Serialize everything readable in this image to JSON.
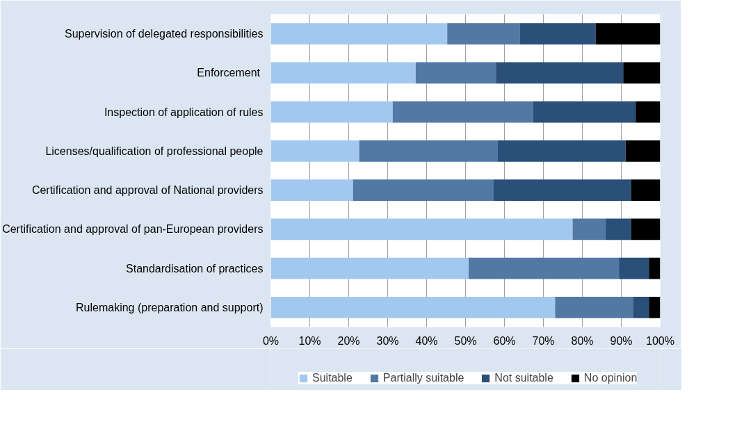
{
  "chart_data": {
    "type": "bar",
    "orientation": "horizontal",
    "stacked": true,
    "categories": [
      "Supervision of delegated responsibilities",
      "Enforcement ",
      "Inspection of application of rules",
      "Licenses/qualification of professional people",
      "Certification and approval of National providers",
      "Certification and approval of pan-European providers",
      "Standardisation of practices",
      "Rulemaking (preparation and support)"
    ],
    "series": [
      {
        "name": "Suitable",
        "color": "#a3c8f0",
        "values": [
          45.3,
          37.2,
          31.3,
          22.7,
          21.1,
          77.5,
          50.8,
          73.0
        ]
      },
      {
        "name": "Partially suitable",
        "color": "#5279a3",
        "values": [
          18.7,
          20.6,
          36.1,
          35.6,
          36.0,
          8.5,
          38.6,
          20.0
        ]
      },
      {
        "name": "Not suitable",
        "color": "#2a4f78",
        "values": [
          19.4,
          32.7,
          26.3,
          32.8,
          35.4,
          6.5,
          7.7,
          4.1
        ]
      },
      {
        "name": "No opinion",
        "color": "#000000",
        "values": [
          16.6,
          9.5,
          6.3,
          8.9,
          7.5,
          7.5,
          2.9,
          2.9
        ]
      }
    ],
    "xlim": [
      0,
      100
    ],
    "xticks": [
      {
        "value": 0,
        "label": "0%"
      },
      {
        "value": 10,
        "label": "10%"
      },
      {
        "value": 20,
        "label": "20%"
      },
      {
        "value": 30,
        "label": "30%"
      },
      {
        "value": 40,
        "label": "40%"
      },
      {
        "value": 50,
        "label": "50%"
      },
      {
        "value": 60,
        "label": "60%"
      },
      {
        "value": 70,
        "label": "70%"
      },
      {
        "value": 80,
        "label": "80%"
      },
      {
        "value": 90,
        "label": "90%"
      },
      {
        "value": 100,
        "label": "100%"
      }
    ],
    "grid": "x",
    "legend": "bottom"
  }
}
